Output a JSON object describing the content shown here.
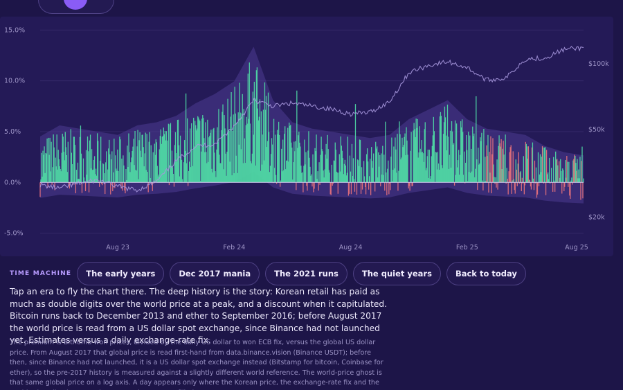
{
  "chart_data": {
    "type": "bar",
    "title": "",
    "xlabel": "",
    "ylabel": "",
    "x_ticks": [
      "Aug 23",
      "Feb 24",
      "Aug 24",
      "Feb 25",
      "Aug 25"
    ],
    "y_ticks": [
      "15.0%",
      "10.0%",
      "5.0%",
      "0.0%",
      "-5.0%"
    ],
    "y_right_ticks": [
      "$100k",
      "$50k",
      "$20k"
    ],
    "ylim": [
      -5.5,
      15.5
    ],
    "y_right_scale": "log",
    "y_right_range": [
      16000,
      150000
    ],
    "grid": true,
    "colors": {
      "premium_positive": "#4fd6a4",
      "premium_negative": "#e3707c",
      "world_price_line": "#a596dc",
      "band": "#4c3c92",
      "zero_line": "#d9d2f5"
    },
    "series": [
      {
        "name": "",
        "kind": "daily premium",
        "monthly_mean_pct": [
          {
            "x": "2023-04",
            "y": 1.5
          },
          {
            "x": "2023-05",
            "y": 2.2
          },
          {
            "x": "2023-06",
            "y": 2.0
          },
          {
            "x": "2023-07",
            "y": 1.8
          },
          {
            "x": "2023-08",
            "y": 1.6
          },
          {
            "x": "2023-09",
            "y": 2.2
          },
          {
            "x": "2023-10",
            "y": 2.4
          },
          {
            "x": "2023-11",
            "y": 2.8
          },
          {
            "x": "2023-12",
            "y": 3.6
          },
          {
            "x": "2024-01",
            "y": 4.2
          },
          {
            "x": "2024-02",
            "y": 5.0
          },
          {
            "x": "2024-03",
            "y": 7.2
          },
          {
            "x": "2024-04",
            "y": 3.8
          },
          {
            "x": "2024-05",
            "y": 2.4
          },
          {
            "x": "2024-06",
            "y": 2.0
          },
          {
            "x": "2024-07",
            "y": 1.8
          },
          {
            "x": "2024-08",
            "y": 1.6
          },
          {
            "x": "2024-09",
            "y": 1.4
          },
          {
            "x": "2024-10",
            "y": 1.6
          },
          {
            "x": "2024-11",
            "y": 2.6
          },
          {
            "x": "2024-12",
            "y": 3.2
          },
          {
            "x": "2025-01",
            "y": 3.8
          },
          {
            "x": "2025-02",
            "y": 2.6
          },
          {
            "x": "2025-03",
            "y": 2.0
          },
          {
            "x": "2025-04",
            "y": 1.8
          },
          {
            "x": "2025-05",
            "y": 1.6
          },
          {
            "x": "2025-06",
            "y": 0.9
          },
          {
            "x": "2025-07",
            "y": 0.5
          },
          {
            "x": "2025-08",
            "y": 0.3
          }
        ],
        "max_pct": 13.8,
        "min_pct": -4.8
      },
      {
        "name": "",
        "kind": "world price ghost (log, right axis)",
        "monthly_usd": [
          {
            "x": "2023-04",
            "y": 28000
          },
          {
            "x": "2023-05",
            "y": 27000
          },
          {
            "x": "2023-06",
            "y": 28500
          },
          {
            "x": "2023-07",
            "y": 29500
          },
          {
            "x": "2023-08",
            "y": 27500
          },
          {
            "x": "2023-09",
            "y": 26500
          },
          {
            "x": "2023-10",
            "y": 29000
          },
          {
            "x": "2023-11",
            "y": 36000
          },
          {
            "x": "2023-12",
            "y": 42000
          },
          {
            "x": "2024-01",
            "y": 43000
          },
          {
            "x": "2024-02",
            "y": 52000
          },
          {
            "x": "2024-03",
            "y": 68000
          },
          {
            "x": "2024-04",
            "y": 64000
          },
          {
            "x": "2024-05",
            "y": 66000
          },
          {
            "x": "2024-06",
            "y": 64000
          },
          {
            "x": "2024-07",
            "y": 62000
          },
          {
            "x": "2024-08",
            "y": 59000
          },
          {
            "x": "2024-09",
            "y": 60000
          },
          {
            "x": "2024-10",
            "y": 67000
          },
          {
            "x": "2024-11",
            "y": 91000
          },
          {
            "x": "2024-12",
            "y": 98000
          },
          {
            "x": "2025-01",
            "y": 102000
          },
          {
            "x": "2025-02",
            "y": 96000
          },
          {
            "x": "2025-03",
            "y": 84000
          },
          {
            "x": "2025-04",
            "y": 86000
          },
          {
            "x": "2025-05",
            "y": 105000
          },
          {
            "x": "2025-06",
            "y": 106000
          },
          {
            "x": "2025-07",
            "y": 116000
          },
          {
            "x": "2025-08",
            "y": 118000
          }
        ]
      }
    ]
  },
  "time_machine": {
    "label": "TIME MACHINE",
    "buttons": [
      "The early years",
      "Dec 2017 mania",
      "The 2021 runs",
      "The quiet years",
      "Back to today"
    ]
  },
  "description": "Tap an era to fly the chart there. The deep history is the story: Korean retail has paid as much as double digits over the world price at a peak, and a discount when it capitulated. Bitcoin runs back to December 2013 and ether to September 2016; before August 2017 the world price is read from a US dollar spot exchange, since Binance had not launched yet. Estimates versus a daily exchange-rate fix.",
  "note": "The premium is Bithumb won prices, divided by the daily US dollar to won ECB fix, versus the global US dollar price. From August 2017 that global price is read first-hand from data.binance.vision (Binance USDT); before then, since Binance had not launched, it is a US dollar spot exchange instead (Bitstamp for bitcoin, Coinbase for ether), so the pre-2017 history is measured against a slightly different world reference. The world-price ghost is that same global price on a log axis. A day appears only where the Korean price, the exchange-rate fix and the world price all exist, so early gaps are honest, not filled"
}
